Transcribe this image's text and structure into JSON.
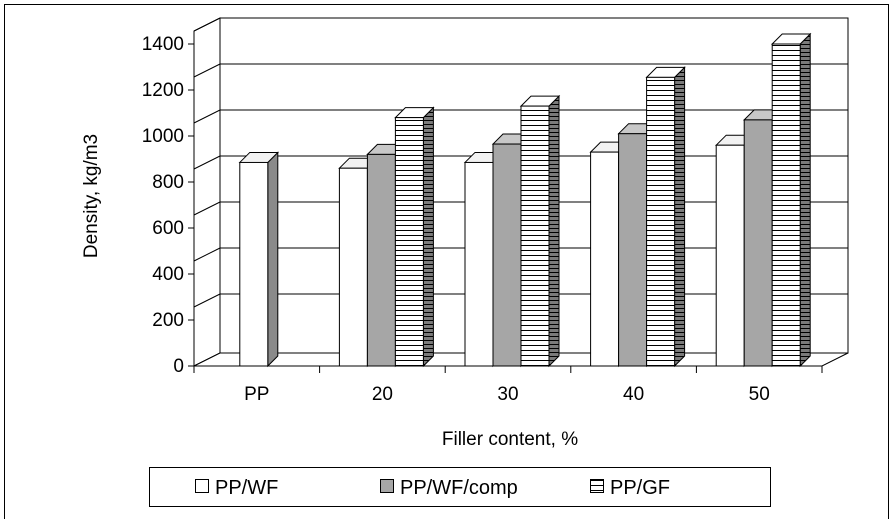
{
  "chart_data": {
    "type": "bar",
    "categories": [
      "PP",
      "20",
      "30",
      "40",
      "50"
    ],
    "series": [
      {
        "name": "PP/WF",
        "values": [
          885,
          860,
          885,
          930,
          960
        ],
        "color": "#ffffff",
        "fill": "plain"
      },
      {
        "name": "PP/WF/comp",
        "values": [
          null,
          920,
          965,
          1010,
          1070
        ],
        "color": "#a6a6a6",
        "fill": "plain"
      },
      {
        "name": "PP/GF",
        "values": [
          null,
          1080,
          1130,
          1255,
          1400
        ],
        "color": "#ffffff",
        "fill": "horizontal-stripes"
      }
    ],
    "xlabel": "Filler content, %",
    "ylabel": "Density, kg/m3",
    "ylim": [
      0,
      1400
    ],
    "yticks": [
      "0",
      "200",
      "400",
      "600",
      "800",
      "1000",
      "1200",
      "1400"
    ],
    "grid": true,
    "three_d": true,
    "legend_position": "bottom"
  }
}
